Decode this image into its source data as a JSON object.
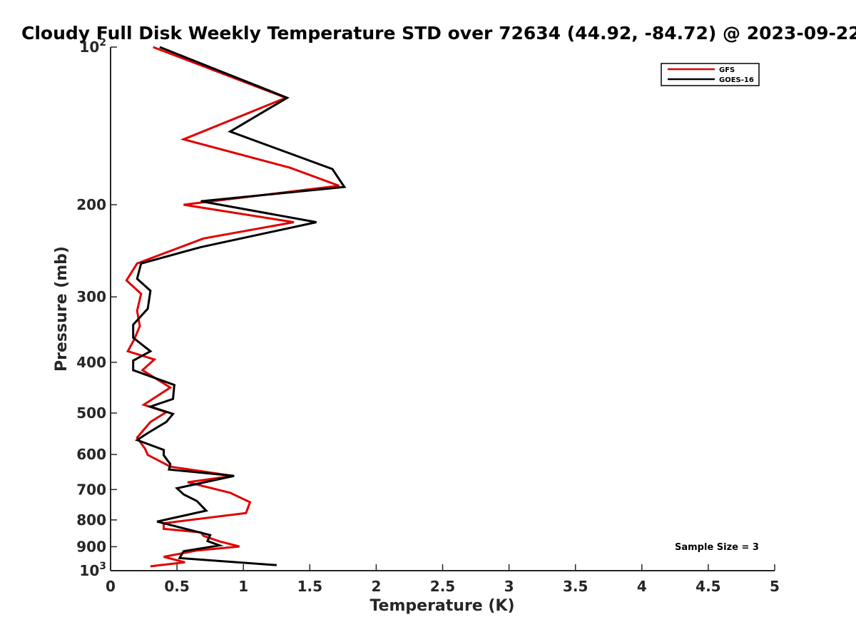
{
  "chart_data": {
    "type": "line",
    "title": "Cloudy Full Disk Weekly Temperature STD over 72634 (44.92, -84.72) @ 2023-09-22",
    "xlabel": "Temperature (K)",
    "ylabel": "Pressure (mb)",
    "xlim": [
      0,
      5
    ],
    "ylim": [
      100,
      1000
    ],
    "yscale": "log",
    "yreversed": true,
    "xticks": [
      0,
      0.5,
      1,
      1.5,
      2,
      2.5,
      3,
      3.5,
      4,
      4.5,
      5
    ],
    "xtick_labels": [
      "0",
      "0.5",
      "1",
      "1.5",
      "2",
      "2.5",
      "3",
      "3.5",
      "4",
      "4.5",
      "5"
    ],
    "yticks": [
      {
        "value": 100,
        "base": "10",
        "exp": "2",
        "label": ""
      },
      {
        "value": 200,
        "label": "200"
      },
      {
        "value": 300,
        "label": "300"
      },
      {
        "value": 400,
        "label": "400"
      },
      {
        "value": 500,
        "label": "500"
      },
      {
        "value": 600,
        "label": "600"
      },
      {
        "value": 700,
        "label": "700"
      },
      {
        "value": 800,
        "label": "800"
      },
      {
        "value": 900,
        "label": "900"
      },
      {
        "value": 1000,
        "base": "10",
        "exp": "3",
        "label": ""
      }
    ],
    "grid": false,
    "legend_position": "top-right",
    "annotation": "Sample Size = 3",
    "series": [
      {
        "name": "GFS",
        "color": "#e00000",
        "points": [
          [
            0.32,
            100
          ],
          [
            1.32,
            125
          ],
          [
            0.55,
            150
          ],
          [
            1.35,
            170
          ],
          [
            1.72,
            184
          ],
          [
            0.55,
            200
          ],
          [
            1.38,
            216
          ],
          [
            0.7,
            232
          ],
          [
            0.2,
            259
          ],
          [
            0.12,
            279
          ],
          [
            0.23,
            296
          ],
          [
            0.2,
            319
          ],
          [
            0.22,
            341
          ],
          [
            0.18,
            361
          ],
          [
            0.13,
            381
          ],
          [
            0.33,
            395
          ],
          [
            0.24,
            414
          ],
          [
            0.45,
            447
          ],
          [
            0.25,
            482
          ],
          [
            0.42,
            498
          ],
          [
            0.3,
            520
          ],
          [
            0.2,
            557
          ],
          [
            0.26,
            585
          ],
          [
            0.28,
            601
          ],
          [
            0.45,
            633
          ],
          [
            0.92,
            659
          ],
          [
            0.58,
            678
          ],
          [
            0.9,
            710
          ],
          [
            1.05,
            740
          ],
          [
            1.02,
            776
          ],
          [
            0.4,
            812
          ],
          [
            0.4,
            832
          ],
          [
            0.68,
            845
          ],
          [
            0.7,
            858
          ],
          [
            0.82,
            879
          ],
          [
            0.97,
            899
          ],
          [
            0.65,
            915
          ],
          [
            0.4,
            941
          ],
          [
            0.56,
            964
          ],
          [
            0.3,
            981
          ]
        ]
      },
      {
        "name": "GOES-16",
        "color": "#000000",
        "points": [
          [
            0.37,
            100
          ],
          [
            1.33,
            125
          ],
          [
            0.9,
            145
          ],
          [
            1.67,
            171
          ],
          [
            1.76,
            185
          ],
          [
            0.68,
            197
          ],
          [
            1.55,
            216
          ],
          [
            0.68,
            241
          ],
          [
            0.23,
            259
          ],
          [
            0.2,
            277
          ],
          [
            0.3,
            292
          ],
          [
            0.28,
            316
          ],
          [
            0.17,
            339
          ],
          [
            0.17,
            359
          ],
          [
            0.3,
            381
          ],
          [
            0.17,
            397
          ],
          [
            0.17,
            414
          ],
          [
            0.48,
            442
          ],
          [
            0.47,
            470
          ],
          [
            0.3,
            486
          ],
          [
            0.47,
            502
          ],
          [
            0.42,
            520
          ],
          [
            0.28,
            546
          ],
          [
            0.2,
            563
          ],
          [
            0.4,
            588
          ],
          [
            0.4,
            602
          ],
          [
            0.45,
            626
          ],
          [
            0.44,
            641
          ],
          [
            0.93,
            659
          ],
          [
            0.5,
            696
          ],
          [
            0.55,
            715
          ],
          [
            0.65,
            736
          ],
          [
            0.72,
            768
          ],
          [
            0.35,
            806
          ],
          [
            0.75,
            855
          ],
          [
            0.73,
            878
          ],
          [
            0.82,
            895
          ],
          [
            0.55,
            918
          ],
          [
            0.52,
            946
          ],
          [
            1.25,
            976
          ]
        ]
      }
    ]
  }
}
